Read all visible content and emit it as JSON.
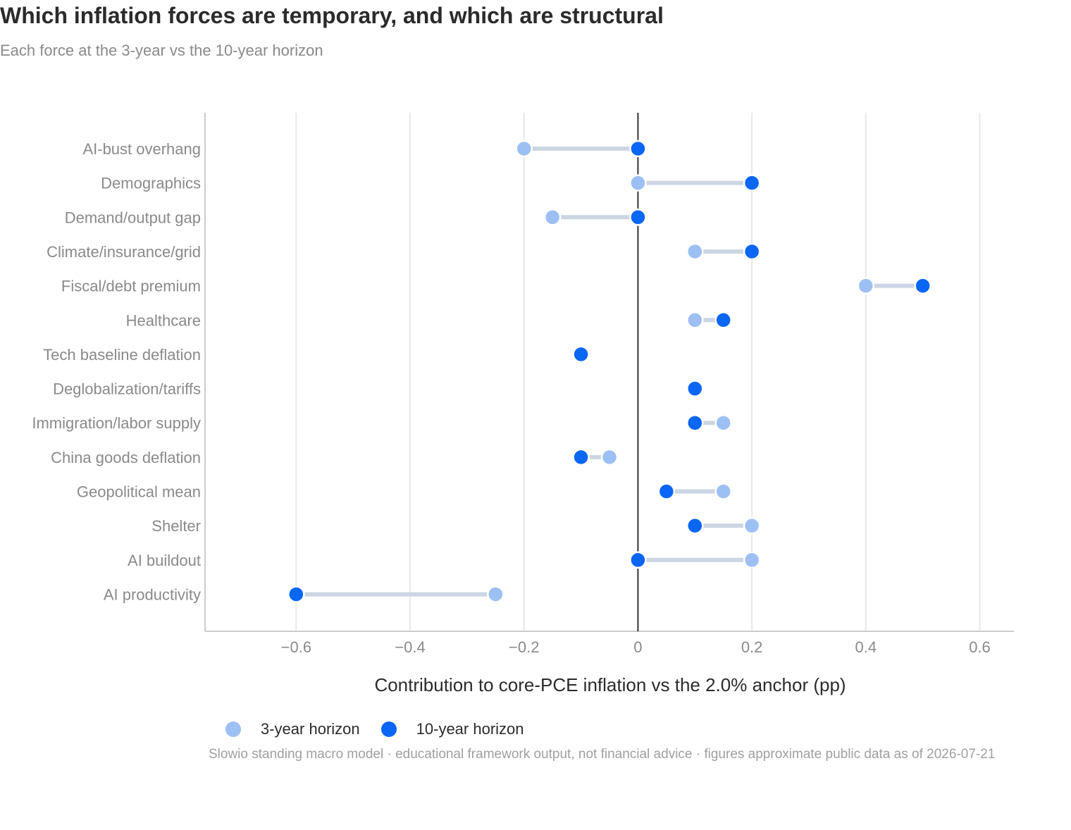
{
  "header": {
    "title": "Which inflation forces are temporary, and which are structural",
    "subtitle": "Each force at the 3-year vs the 10-year horizon"
  },
  "footnote": "Slowio standing macro model · educational framework output, not financial advice · figures approximate public data as of 2026-07-21",
  "colors": {
    "three_year": "#9dc0f4",
    "ten_year": "#0a66f5",
    "connector": "#ccd5e3",
    "zero_line": "#333333",
    "grid": "#e8e8e8",
    "axis": "#cccccc"
  },
  "chart_data": {
    "type": "dumbbell",
    "title": "Which inflation forces are temporary, and which are structural",
    "subtitle": "Each force at the 3-year vs the 10-year horizon",
    "xlabel": "Contribution to core-PCE inflation vs the 2.0% anchor  (pp)",
    "ylabel": "",
    "xlim": [
      -0.76,
      0.66
    ],
    "xticks": [
      -0.6,
      -0.4,
      -0.2,
      0,
      0.2,
      0.4,
      0.6
    ],
    "xtick_labels": [
      "−0.6",
      "−0.4",
      "−0.2",
      "0",
      "0.2",
      "0.4",
      "0.6"
    ],
    "grid": "vertical",
    "legend_position": "bottom-left",
    "categories": [
      "AI-bust overhang",
      "Demographics",
      "Demand/output gap",
      "Climate/insurance/grid",
      "Fiscal/debt premium",
      "Healthcare",
      "Tech baseline deflation",
      "Deglobalization/tariffs",
      "Immigration/labor supply",
      "China goods deflation",
      "Geopolitical mean",
      "Shelter",
      "AI buildout",
      "AI productivity"
    ],
    "series": [
      {
        "name": "3-year horizon",
        "values": [
          -0.2,
          0,
          -0.15,
          0.1,
          0.4,
          0.1,
          -0.1,
          0.1,
          0.15,
          -0.05,
          0.15,
          0.2,
          0.2,
          -0.25
        ]
      },
      {
        "name": "10-year horizon",
        "values": [
          0,
          0.2,
          0,
          0.2,
          0.5,
          0.15,
          -0.1,
          0.1,
          0.1,
          -0.1,
          0.05,
          0.1,
          0,
          -0.6
        ]
      }
    ]
  }
}
